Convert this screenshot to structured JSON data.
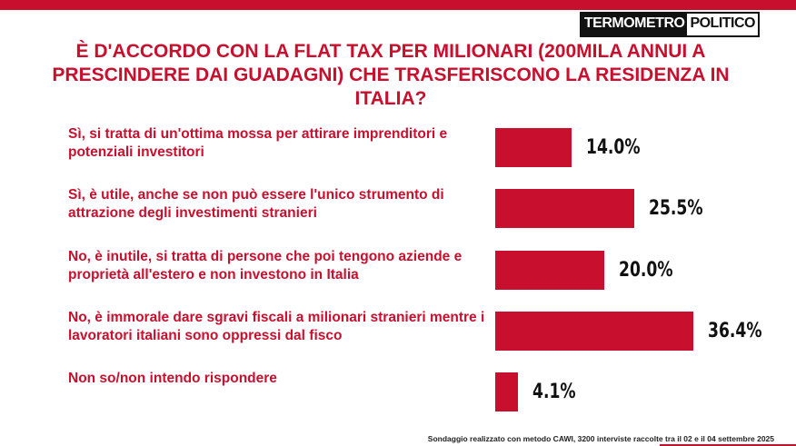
{
  "chart_data": {
    "type": "bar",
    "orientation": "horizontal",
    "logo": [
      "TERMOMETRO",
      "POLITICO"
    ],
    "title": "È D'ACCORDO CON LA FLAT TAX PER MILIONARI (200MILA ANNUI A PRESCINDERE DAI GUADAGNI) CHE TRASFERISCONO LA RESIDENZA IN ITALIA?",
    "categories": [
      "Sì, si tratta di un'ottima mossa per attirare imprenditori e potenziali investitori",
      "Sì, è utile, anche se non può essere l'unico strumento di attrazione degli investimenti stranieri",
      "No, è inutile, si tratta di persone che poi tengono aziende e proprietà all'estero e non investono in Italia",
      "No, è immorale dare sgravi fiscali a milionari stranieri mentre i lavoratori italiani sono oppressi dal fisco",
      "Non so/non intendo rispondere"
    ],
    "values": [
      14.0,
      25.5,
      20.0,
      36.4,
      4.1
    ],
    "value_labels": [
      "14.0%",
      "25.5%",
      "20.0%",
      "36.4%",
      "4.1%"
    ],
    "color": "#c8102e",
    "note": "Sondaggio realizzato con metodo CAWI, 3200 interviste raccolte tra il 02 e il 04 settembre 2025"
  }
}
